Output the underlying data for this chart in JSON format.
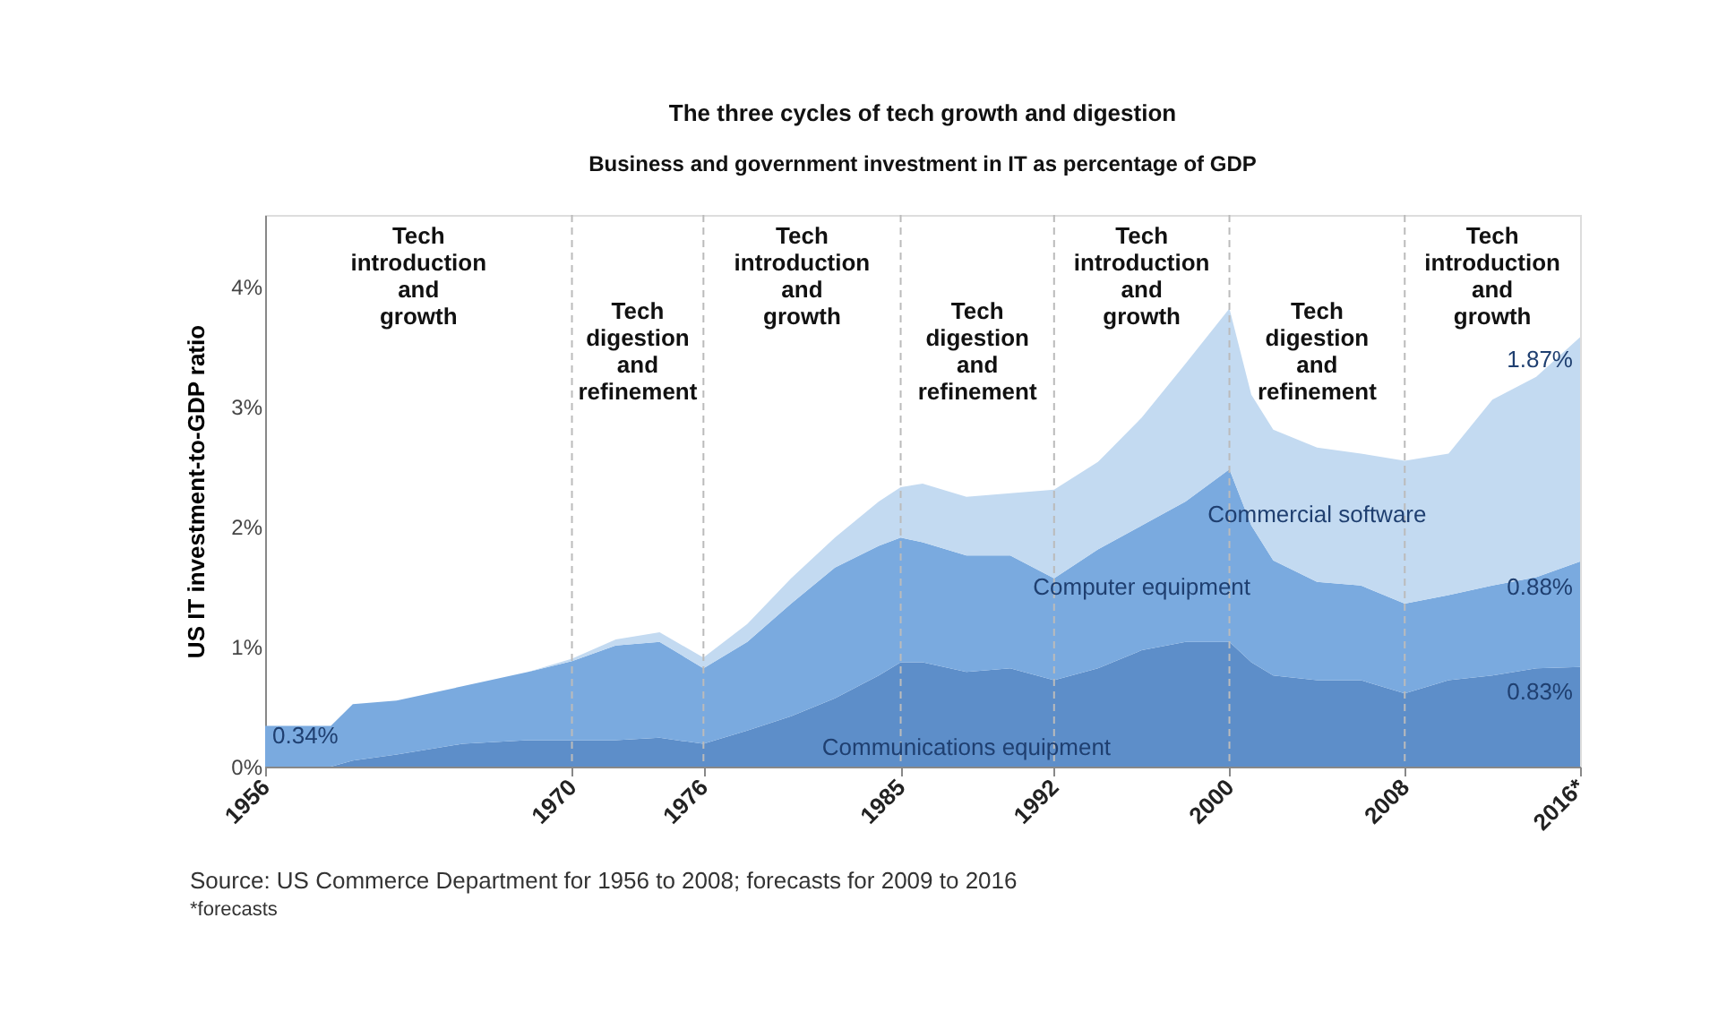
{
  "chart_data": {
    "type": "area",
    "stacked": true,
    "title": "The three cycles of tech growth and digestion",
    "subtitle": "Business and government investment in IT as percentage of GDP",
    "ylabel": "US IT investment-to-GDP ratio",
    "x": [
      1956,
      1959,
      1960,
      1962,
      1965,
      1968,
      1970,
      1972,
      1974,
      1976,
      1978,
      1980,
      1982,
      1984,
      1985,
      1986,
      1988,
      1990,
      1992,
      1994,
      1996,
      1998,
      2000,
      2001,
      2002,
      2004,
      2006,
      2008,
      2010,
      2012,
      2014,
      2016
    ],
    "series": [
      {
        "name": "Communications equipment",
        "color": "#5d8ec9",
        "values": [
          0,
          0,
          0.05,
          0.1,
          0.19,
          0.22,
          0.22,
          0.22,
          0.24,
          0.19,
          0.3,
          0.42,
          0.57,
          0.76,
          0.87,
          0.87,
          0.79,
          0.82,
          0.72,
          0.82,
          0.97,
          1.04,
          1.04,
          0.87,
          0.76,
          0.72,
          0.72,
          0.61,
          0.72,
          0.76,
          0.82,
          0.83
        ],
        "value_labels": [
          null,
          null,
          null,
          null,
          null,
          null,
          null,
          null,
          null,
          null,
          null,
          null,
          null,
          null,
          null,
          null,
          null,
          null,
          null,
          null,
          null,
          null,
          null,
          null,
          null,
          null,
          null,
          null,
          null,
          null,
          null,
          "0.83%"
        ]
      },
      {
        "name": "Computer equipment",
        "color": "#7aaadf",
        "values": [
          0.34,
          0.34,
          0.47,
          0.45,
          0.48,
          0.57,
          0.66,
          0.79,
          0.8,
          0.63,
          0.74,
          0.94,
          1.09,
          1.08,
          1.04,
          1.0,
          0.97,
          0.94,
          0.85,
          0.99,
          1.04,
          1.17,
          1.44,
          1.14,
          0.96,
          0.82,
          0.79,
          0.75,
          0.71,
          0.75,
          0.76,
          0.88
        ],
        "value_labels": [
          "0.34%",
          null,
          null,
          null,
          null,
          null,
          null,
          null,
          null,
          null,
          null,
          null,
          null,
          null,
          null,
          null,
          null,
          null,
          null,
          null,
          null,
          null,
          null,
          null,
          null,
          null,
          null,
          null,
          null,
          null,
          null,
          "0.88%"
        ]
      },
      {
        "name": "Commercial software",
        "color": "#c3daf1",
        "values": [
          0,
          0,
          0,
          0,
          0,
          0,
          0.02,
          0.05,
          0.08,
          0.09,
          0.15,
          0.21,
          0.25,
          0.37,
          0.42,
          0.49,
          0.49,
          0.52,
          0.74,
          0.73,
          0.9,
          1.15,
          1.34,
          1.09,
          1.09,
          1.12,
          1.1,
          1.19,
          1.18,
          1.55,
          1.67,
          1.87
        ],
        "value_labels": [
          null,
          null,
          null,
          null,
          null,
          null,
          null,
          null,
          null,
          null,
          null,
          null,
          null,
          null,
          null,
          null,
          null,
          null,
          null,
          null,
          null,
          null,
          null,
          null,
          null,
          null,
          null,
          null,
          null,
          null,
          null,
          "1.87%"
        ]
      }
    ],
    "xlim": [
      1956,
      2016
    ],
    "xticks": [
      1956,
      1970,
      1976,
      1985,
      1992,
      2000,
      2008,
      {
        "value": 2016,
        "label": "2016*"
      }
    ],
    "ylim": [
      0,
      4.6
    ],
    "yticks": [
      {
        "value": 0,
        "label": "0%"
      },
      {
        "value": 1,
        "label": "1%"
      },
      {
        "value": 2,
        "label": "2%"
      },
      {
        "value": 3,
        "label": "3%"
      },
      {
        "value": 4,
        "label": "4%"
      }
    ],
    "grid": false,
    "legend": false,
    "ref_lines": [
      {
        "axis": "x",
        "value": 1970,
        "line_style": "dashed",
        "color": "#bbbbbb"
      },
      {
        "axis": "x",
        "value": 1976,
        "line_style": "dashed",
        "color": "#bbbbbb"
      },
      {
        "axis": "x",
        "value": 1985,
        "line_style": "dashed",
        "color": "#bbbbbb"
      },
      {
        "axis": "x",
        "value": 1992,
        "line_style": "dashed",
        "color": "#bbbbbb"
      },
      {
        "axis": "x",
        "value": 2000,
        "line_style": "dashed",
        "color": "#bbbbbb"
      },
      {
        "axis": "x",
        "value": 2008,
        "line_style": "dashed",
        "color": "#bbbbbb"
      }
    ],
    "annotations": [
      "Tech\nintroduction\nand\ngrowth",
      "Tech\ndigestion\nand\nrefinement",
      "Tech\nintroduction\nand\ngrowth",
      "Tech\ndigestion\nand\nrefinement",
      "Tech\nintroduction\nand\ngrowth",
      "Tech\ndigestion\nand\nrefinement",
      "Tech\nintroduction\nand\ngrowth",
      "Source: US Commerce Department for 1956 to 2008; forecasts for 2009 to 2016",
      "*forecasts"
    ]
  }
}
